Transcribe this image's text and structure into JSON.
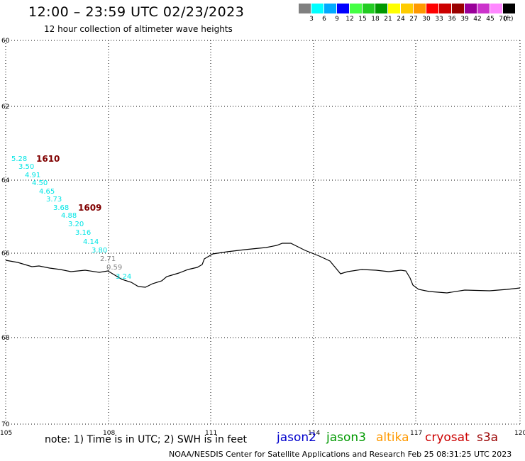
{
  "header": {
    "title": "12:00 – 23:59 UTC 02/23/2023",
    "subtitle": "12 hour collection of altimeter wave heights"
  },
  "legend": {
    "colors": [
      "#808080",
      "#00ffff",
      "#00aaff",
      "#0000ff",
      "#44ff44",
      "#22cc22",
      "#009900",
      "#ffff00",
      "#ffcc00",
      "#ff9900",
      "#ff0000",
      "#cc0000",
      "#990000",
      "#990099",
      "#cc33cc",
      "#ff88ff",
      "#000000"
    ],
    "labels": [
      "3",
      "6",
      "9",
      "12",
      "15",
      "18",
      "21",
      "24",
      "27",
      "30",
      "33",
      "36",
      "39",
      "42",
      "45",
      "70"
    ],
    "unit": "(ft)"
  },
  "map": {
    "lon_ticks": [
      "105",
      "108",
      "111",
      "114",
      "117",
      "120"
    ],
    "lat_ticks": [
      "60",
      "62",
      "64",
      "66",
      "68",
      "70"
    ],
    "wave_points": [
      {
        "text": "5.28",
        "color": "#00e5e5"
      },
      {
        "text": "3.50",
        "color": "#00e5e5"
      },
      {
        "text": "4.91",
        "color": "#00e5e5"
      },
      {
        "text": "4.50",
        "color": "#00e5e5"
      },
      {
        "text": "4.65",
        "color": "#00e5e5"
      },
      {
        "text": "3.73",
        "color": "#00e5e5"
      },
      {
        "text": "3.68",
        "color": "#00e5e5"
      },
      {
        "text": "4.88",
        "color": "#00e5e5"
      },
      {
        "text": "3.20",
        "color": "#00e5e5"
      },
      {
        "text": "3.16",
        "color": "#00e5e5"
      },
      {
        "text": "4.14",
        "color": "#00e5e5"
      },
      {
        "text": "3.80",
        "color": "#00e5e5"
      },
      {
        "text": "2.71",
        "color": "#808080"
      },
      {
        "text": "0.59",
        "color": "#808080"
      },
      {
        "text": "3.24",
        "color": "#00e5e5"
      }
    ],
    "time_labels": [
      {
        "text": "1610",
        "color": "#800000"
      },
      {
        "text": "1609",
        "color": "#800000"
      }
    ]
  },
  "footer": {
    "note": "note: 1) Time is in UTC; 2) SWH is in feet",
    "satellites": [
      {
        "name": "jason2",
        "color": "#0000cc"
      },
      {
        "name": "jason3",
        "color": "#009900"
      },
      {
        "name": "altika",
        "color": "#ff9900"
      },
      {
        "name": "cryosat",
        "color": "#cc0000"
      },
      {
        "name": "s3a",
        "color": "#990000"
      }
    ],
    "credit": "NOAA/NESDIS Center for Satellite Applications and Research    Feb 25 08:31:25 UTC 2023"
  }
}
